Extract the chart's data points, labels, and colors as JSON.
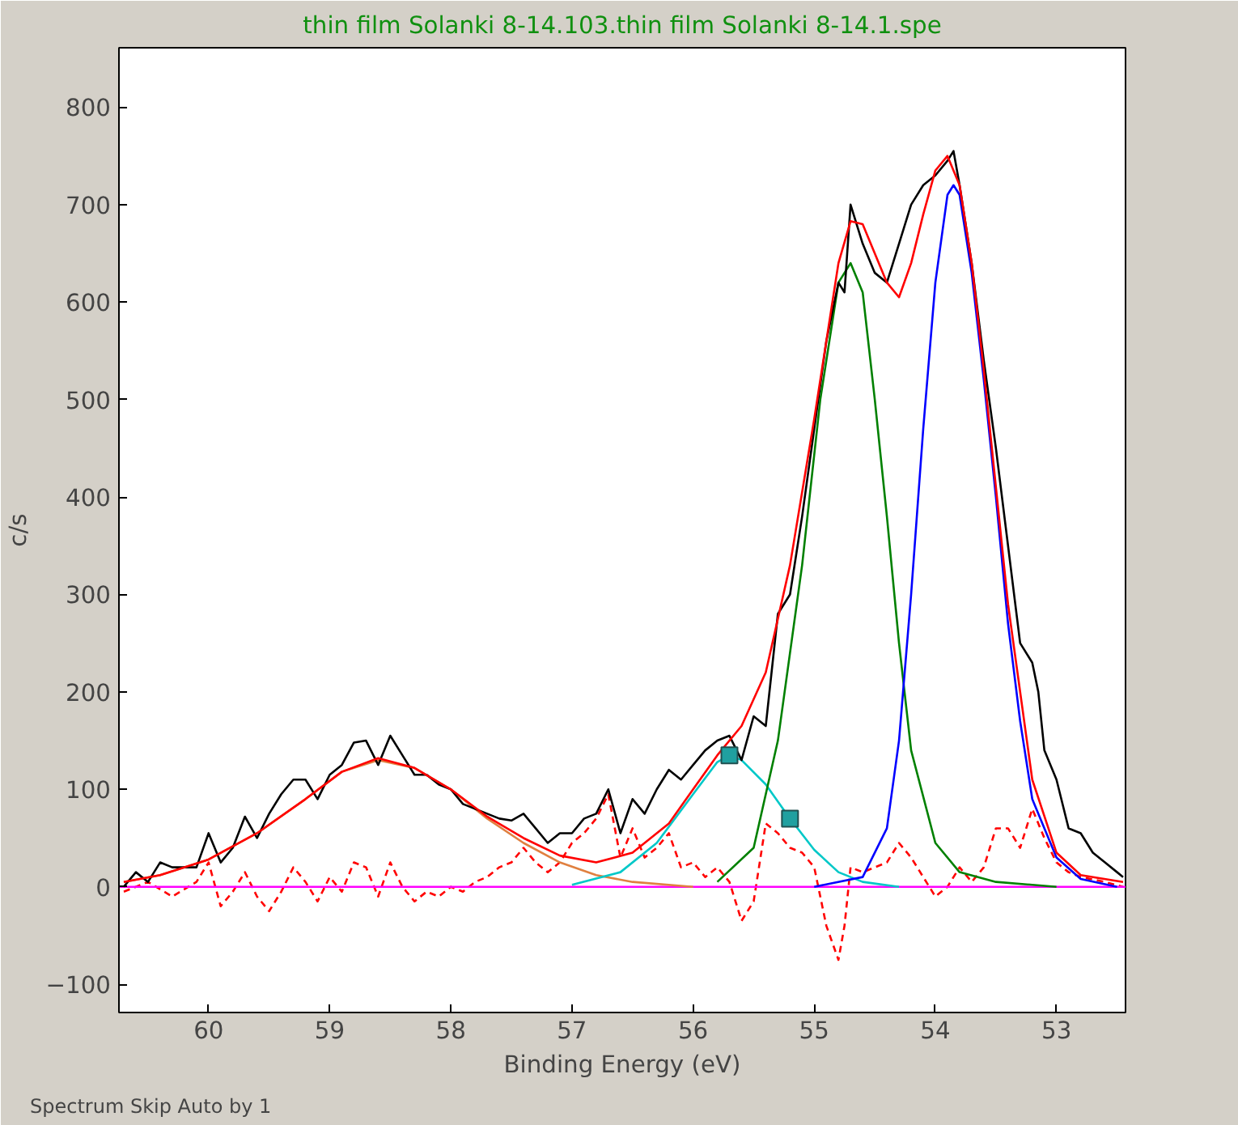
{
  "chart_data": {
    "type": "line",
    "title": "thin film Solanki 8-14.103.thin film Solanki 8-14.1.spe",
    "xlabel": "Binding Energy (eV)",
    "ylabel": "c/s",
    "annotations": [
      "Spectrum Skip Auto by 1"
    ],
    "xlim": [
      60.74,
      52.43
    ],
    "ylim": [
      -129,
      861
    ],
    "xticks": [
      60,
      59,
      58,
      57,
      56,
      55,
      54,
      53
    ],
    "yticks": [
      -100,
      0,
      100,
      200,
      300,
      400,
      500,
      600,
      700,
      800
    ],
    "grid": false,
    "series": [
      {
        "color": "#ff0000",
        "line_style": "dashed",
        "x": [
          60.7,
          60.5,
          60.3,
          60.1,
          60.0,
          59.9,
          59.8,
          59.7,
          59.6,
          59.5,
          59.4,
          59.3,
          59.2,
          59.1,
          59.0,
          58.9,
          58.8,
          58.7,
          58.6,
          58.5,
          58.4,
          58.3,
          58.2,
          58.1,
          58.0,
          57.9,
          57.8,
          57.7,
          57.6,
          57.5,
          57.4,
          57.3,
          57.2,
          57.1,
          57.0,
          56.9,
          56.8,
          56.7,
          56.6,
          56.5,
          56.4,
          56.3,
          56.2,
          56.1,
          56.0,
          55.9,
          55.8,
          55.7,
          55.6,
          55.5,
          55.4,
          55.3,
          55.2,
          55.1,
          55.0,
          54.9,
          54.8,
          54.75,
          54.7,
          54.6,
          54.5,
          54.4,
          54.3,
          54.2,
          54.1,
          54.0,
          53.9,
          53.8,
          53.7,
          53.6,
          53.5,
          53.4,
          53.3,
          53.2,
          53.1,
          53.0,
          52.9,
          52.8,
          52.6,
          52.45
        ],
        "values": [
          -5,
          5,
          -10,
          5,
          25,
          -20,
          -5,
          15,
          -10,
          -25,
          -5,
          20,
          5,
          -15,
          10,
          -5,
          25,
          20,
          -10,
          25,
          0,
          -15,
          -5,
          -10,
          0,
          -5,
          5,
          10,
          20,
          25,
          40,
          25,
          15,
          25,
          45,
          55,
          70,
          95,
          30,
          60,
          30,
          40,
          55,
          20,
          25,
          10,
          20,
          5,
          -35,
          -15,
          65,
          55,
          40,
          35,
          20,
          -40,
          -75,
          -40,
          20,
          15,
          20,
          25,
          45,
          30,
          10,
          -10,
          0,
          20,
          5,
          20,
          60,
          60,
          40,
          80,
          50,
          25,
          15,
          10,
          5,
          0
        ]
      },
      {
        "color": "#ff00ff",
        "x": [
          60.74,
          52.43
        ],
        "values": [
          0,
          0
        ]
      },
      {
        "color": "#e08040",
        "x": [
          60.7,
          60.4,
          60.0,
          59.6,
          59.2,
          58.9,
          58.6,
          58.3,
          58.0,
          57.7,
          57.4,
          57.1,
          56.8,
          56.5,
          56.0
        ],
        "values": [
          5,
          12,
          28,
          55,
          90,
          118,
          130,
          122,
          100,
          70,
          45,
          25,
          12,
          5,
          0
        ]
      },
      {
        "color": "#00c8c8",
        "x": [
          57.0,
          56.6,
          56.3,
          56.0,
          55.8,
          55.7,
          55.6,
          55.4,
          55.2,
          55.0,
          54.8,
          54.6,
          54.3
        ],
        "values": [
          2,
          15,
          45,
          95,
          128,
          135,
          130,
          105,
          70,
          38,
          15,
          5,
          0
        ]
      },
      {
        "color": "#008000",
        "x": [
          55.8,
          55.5,
          55.3,
          55.1,
          54.95,
          54.8,
          54.7,
          54.6,
          54.5,
          54.4,
          54.3,
          54.2,
          54.0,
          53.8,
          53.5,
          53.0
        ],
        "values": [
          5,
          40,
          150,
          330,
          500,
          620,
          640,
          610,
          500,
          380,
          250,
          140,
          45,
          15,
          5,
          0
        ]
      },
      {
        "color": "#0000ff",
        "x": [
          55.0,
          54.6,
          54.4,
          54.3,
          54.2,
          54.1,
          54.0,
          53.9,
          53.85,
          53.8,
          53.7,
          53.6,
          53.5,
          53.4,
          53.3,
          53.2,
          53.0,
          52.8,
          52.5
        ],
        "values": [
          0,
          10,
          60,
          150,
          300,
          470,
          620,
          710,
          720,
          710,
          630,
          520,
          400,
          270,
          170,
          90,
          30,
          8,
          0
        ]
      },
      {
        "color": "#000000",
        "x": [
          60.7,
          60.6,
          60.5,
          60.4,
          60.3,
          60.2,
          60.1,
          60.0,
          59.9,
          59.8,
          59.7,
          59.6,
          59.5,
          59.4,
          59.3,
          59.2,
          59.1,
          59.0,
          58.9,
          58.8,
          58.7,
          58.6,
          58.5,
          58.4,
          58.3,
          58.2,
          58.1,
          58.0,
          57.9,
          57.8,
          57.7,
          57.6,
          57.5,
          57.4,
          57.3,
          57.2,
          57.1,
          57.0,
          56.9,
          56.8,
          56.7,
          56.6,
          56.5,
          56.4,
          56.3,
          56.2,
          56.1,
          56.0,
          55.9,
          55.8,
          55.7,
          55.6,
          55.5,
          55.4,
          55.3,
          55.2,
          55.1,
          55.0,
          54.9,
          54.8,
          54.75,
          54.7,
          54.6,
          54.5,
          54.4,
          54.3,
          54.2,
          54.1,
          54.0,
          53.9,
          53.85,
          53.8,
          53.7,
          53.6,
          53.5,
          53.4,
          53.3,
          53.2,
          53.15,
          53.1,
          53.0,
          52.9,
          52.8,
          52.7,
          52.6,
          52.5,
          52.45
        ],
        "values": [
          0,
          15,
          5,
          25,
          20,
          20,
          20,
          55,
          25,
          40,
          72,
          50,
          75,
          95,
          110,
          110,
          90,
          115,
          125,
          148,
          150,
          125,
          155,
          135,
          115,
          115,
          105,
          100,
          85,
          80,
          75,
          70,
          68,
          75,
          60,
          45,
          55,
          55,
          70,
          75,
          100,
          55,
          90,
          75,
          100,
          120,
          110,
          125,
          140,
          150,
          155,
          130,
          175,
          165,
          280,
          300,
          380,
          470,
          560,
          620,
          610,
          700,
          660,
          630,
          620,
          660,
          700,
          720,
          730,
          745,
          755,
          720,
          640,
          540,
          450,
          350,
          250,
          230,
          200,
          140,
          110,
          60,
          55,
          35,
          25,
          15,
          10
        ]
      },
      {
        "color": "#ff0000",
        "x": [
          60.7,
          60.4,
          60.0,
          59.6,
          59.2,
          58.9,
          58.6,
          58.3,
          58.0,
          57.7,
          57.4,
          57.1,
          56.8,
          56.5,
          56.2,
          56.0,
          55.8,
          55.6,
          55.4,
          55.2,
          55.0,
          54.8,
          54.7,
          54.6,
          54.4,
          54.3,
          54.2,
          54.1,
          54.0,
          53.9,
          53.8,
          53.7,
          53.6,
          53.4,
          53.2,
          53.0,
          52.8,
          52.45
        ],
        "values": [
          5,
          12,
          28,
          55,
          90,
          118,
          132,
          122,
          100,
          72,
          50,
          32,
          25,
          35,
          65,
          100,
          135,
          165,
          220,
          330,
          480,
          640,
          683,
          680,
          620,
          605,
          640,
          690,
          735,
          750,
          720,
          640,
          530,
          290,
          110,
          35,
          12,
          5
        ]
      },
      {
        "type": "scatter",
        "marker": "square",
        "color": "#20a0a0",
        "x": [
          55.7,
          55.2
        ],
        "values": [
          135,
          70
        ]
      }
    ]
  }
}
